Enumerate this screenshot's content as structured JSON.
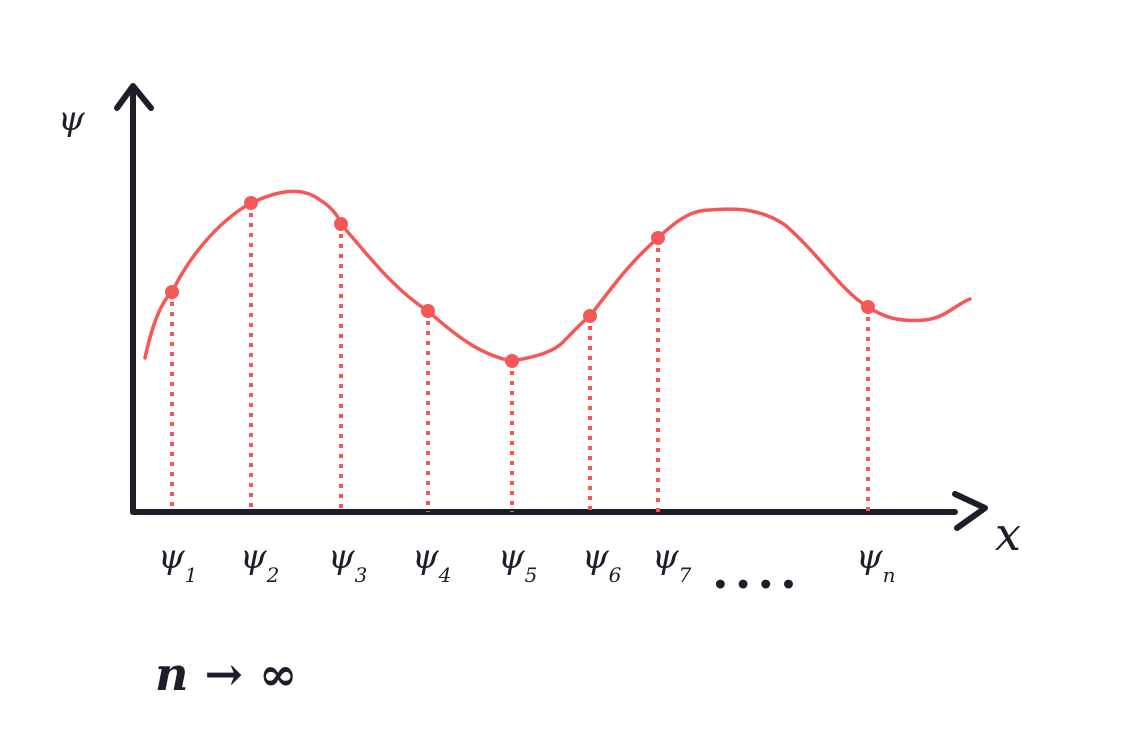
{
  "axis": {
    "y_label": "ψ",
    "x_label": "x"
  },
  "labels": [
    {
      "symbol": "ψ",
      "sub": "1"
    },
    {
      "symbol": "ψ",
      "sub": "2"
    },
    {
      "symbol": "ψ",
      "sub": "3"
    },
    {
      "symbol": "ψ",
      "sub": "4"
    },
    {
      "symbol": "ψ",
      "sub": "5"
    },
    {
      "symbol": "ψ",
      "sub": "6"
    },
    {
      "symbol": "ψ",
      "sub": "7"
    },
    {
      "symbol": "ψ",
      "sub": "n"
    }
  ],
  "ellipsis": "....",
  "limit": "n → ∞"
}
